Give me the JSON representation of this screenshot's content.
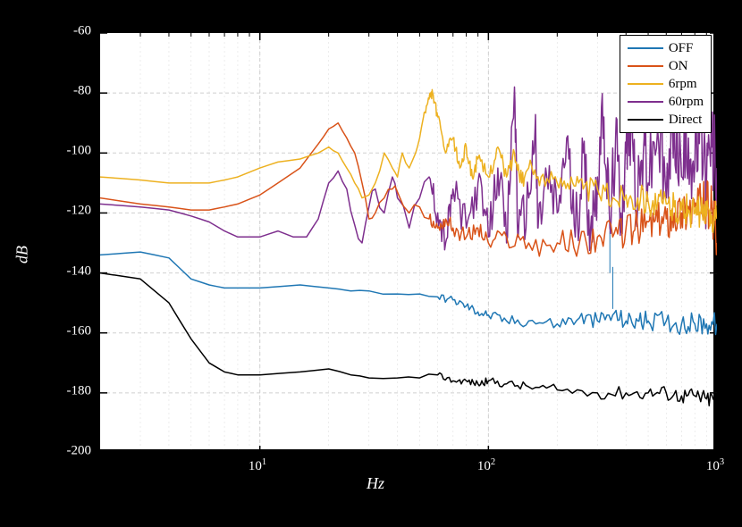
{
  "chart": {
    "type": "line-logx",
    "background_color": "#000000",
    "plot_background": "#ffffff",
    "border_color": "#000000",
    "border_width": 2,
    "xlabel": "Hz",
    "ylabel": "dB",
    "label_fontsize": 18,
    "label_color": "#ffffff",
    "label_fontstyle": "italic",
    "tick_fontsize": 15,
    "tick_color": "#ffffff",
    "xlim": [
      2,
      1000
    ],
    "ylim": [
      -200,
      -60
    ],
    "xscale": "log",
    "yscale": "linear",
    "xticks_major": [
      10,
      100,
      1000
    ],
    "xticks_labels": [
      "10^1",
      "10^2",
      "10^3"
    ],
    "yticks_major": [
      -200,
      -180,
      -160,
      -140,
      -120,
      -100,
      -80,
      -60
    ],
    "yticks_labels": [
      "-200",
      "-180",
      "-160",
      "-140",
      "-120",
      "-100",
      "-80",
      "-60"
    ],
    "grid_major_color": "#cfcfcf",
    "grid_minor_color": "#e5e5e5",
    "grid_linewidth": 1,
    "grid_style": "dashed",
    "legend": {
      "position": "upper-right",
      "border_color": "#000000",
      "background": "#ffffff",
      "items": [
        {
          "label": "OFF",
          "color": "#1f77b4"
        },
        {
          "label": "ON",
          "color": "#d95319"
        },
        {
          "label": "6rpm",
          "color": "#edb120"
        },
        {
          "label": "60rpm",
          "color": "#7e2f8e"
        },
        {
          "label": "Direct",
          "color": "#000000"
        }
      ]
    },
    "series": [
      {
        "name": "Direct",
        "color": "#000000",
        "linewidth": 1.5,
        "points": [
          [
            2,
            -140
          ],
          [
            3,
            -142
          ],
          [
            4,
            -150
          ],
          [
            5,
            -162
          ],
          [
            6,
            -170
          ],
          [
            7,
            -173
          ],
          [
            8,
            -174
          ],
          [
            10,
            -174
          ],
          [
            15,
            -173
          ],
          [
            20,
            -172
          ],
          [
            25,
            -174
          ],
          [
            30,
            -175
          ],
          [
            40,
            -175
          ],
          [
            50,
            -175
          ],
          [
            60,
            -174
          ],
          [
            70,
            -176
          ],
          [
            80,
            -176
          ],
          [
            90,
            -177
          ],
          [
            100,
            -176
          ],
          [
            120,
            -177
          ],
          [
            150,
            -178
          ],
          [
            200,
            -179
          ],
          [
            300,
            -180
          ],
          [
            400,
            -180
          ],
          [
            500,
            -180
          ],
          [
            600,
            -180
          ],
          [
            700,
            -181
          ],
          [
            800,
            -181
          ],
          [
            900,
            -182
          ],
          [
            1000,
            -182
          ]
        ],
        "noise_amplitude_end": 3
      },
      {
        "name": "OFF",
        "color": "#1f77b4",
        "linewidth": 1.5,
        "points": [
          [
            2,
            -134
          ],
          [
            3,
            -133
          ],
          [
            4,
            -135
          ],
          [
            5,
            -142
          ],
          [
            6,
            -144
          ],
          [
            7,
            -145
          ],
          [
            8,
            -145
          ],
          [
            10,
            -145
          ],
          [
            15,
            -144
          ],
          [
            20,
            -145
          ],
          [
            25,
            -146
          ],
          [
            30,
            -146
          ],
          [
            40,
            -147
          ],
          [
            50,
            -147
          ],
          [
            60,
            -148
          ],
          [
            70,
            -149
          ],
          [
            80,
            -151
          ],
          [
            90,
            -153
          ],
          [
            100,
            -154
          ],
          [
            120,
            -156
          ],
          [
            150,
            -156
          ],
          [
            200,
            -157
          ],
          [
            250,
            -155
          ],
          [
            300,
            -156
          ],
          [
            350,
            -154
          ],
          [
            400,
            -156
          ],
          [
            450,
            -156
          ],
          [
            500,
            -156
          ],
          [
            600,
            -156
          ],
          [
            700,
            -157
          ],
          [
            800,
            -157
          ],
          [
            900,
            -157
          ],
          [
            1000,
            -157
          ]
        ],
        "noise_amplitude_end": 4,
        "spikes": [
          [
            340,
            -140
          ],
          [
            350,
            -152
          ]
        ]
      },
      {
        "name": "60rpm",
        "color": "#7e2f8e",
        "linewidth": 1.5,
        "points": [
          [
            2,
            -117
          ],
          [
            3,
            -118
          ],
          [
            4,
            -119
          ],
          [
            5,
            -121
          ],
          [
            6,
            -123
          ],
          [
            7,
            -126
          ],
          [
            8,
            -128
          ],
          [
            10,
            -128
          ],
          [
            12,
            -126
          ],
          [
            14,
            -128
          ],
          [
            16,
            -128
          ],
          [
            18,
            -122
          ],
          [
            20,
            -110
          ],
          [
            22,
            -106
          ],
          [
            24,
            -112
          ],
          [
            26,
            -124
          ],
          [
            28,
            -130
          ],
          [
            30,
            -118
          ],
          [
            32,
            -112
          ],
          [
            35,
            -120
          ],
          [
            38,
            -108
          ],
          [
            40,
            -115
          ],
          [
            45,
            -125
          ],
          [
            50,
            -115
          ],
          [
            55,
            -108
          ],
          [
            60,
            -120
          ],
          [
            65,
            -130
          ],
          [
            70,
            -112
          ],
          [
            80,
            -125
          ],
          [
            90,
            -110
          ],
          [
            100,
            -128
          ],
          [
            110,
            -105
          ],
          [
            120,
            -130
          ],
          [
            130,
            -78
          ],
          [
            135,
            -128
          ],
          [
            150,
            -115
          ],
          [
            160,
            -92
          ],
          [
            165,
            -125
          ],
          [
            180,
            -108
          ],
          [
            200,
            -120
          ],
          [
            220,
            -95
          ],
          [
            240,
            -128
          ],
          [
            260,
            -100
          ],
          [
            280,
            -125
          ],
          [
            300,
            -108
          ],
          [
            320,
            -88
          ],
          [
            340,
            -125
          ],
          [
            360,
            -95
          ],
          [
            380,
            -120
          ],
          [
            400,
            -100
          ],
          [
            420,
            -90
          ],
          [
            450,
            -118
          ],
          [
            480,
            -95
          ],
          [
            500,
            -110
          ],
          [
            550,
            -92
          ],
          [
            600,
            -115
          ],
          [
            650,
            -88
          ],
          [
            700,
            -108
          ],
          [
            750,
            -95
          ],
          [
            800,
            -105
          ],
          [
            850,
            -92
          ],
          [
            900,
            -110
          ],
          [
            950,
            -98
          ],
          [
            1000,
            -105
          ]
        ],
        "noise_amplitude_end": 18
      },
      {
        "name": "ON",
        "color": "#d95319",
        "linewidth": 1.5,
        "points": [
          [
            2,
            -115
          ],
          [
            3,
            -117
          ],
          [
            4,
            -118
          ],
          [
            5,
            -119
          ],
          [
            6,
            -119
          ],
          [
            7,
            -118
          ],
          [
            8,
            -117
          ],
          [
            10,
            -114
          ],
          [
            12,
            -110
          ],
          [
            15,
            -105
          ],
          [
            18,
            -97
          ],
          [
            20,
            -92
          ],
          [
            22,
            -90
          ],
          [
            24,
            -95
          ],
          [
            26,
            -100
          ],
          [
            28,
            -110
          ],
          [
            30,
            -122
          ],
          [
            32,
            -120
          ],
          [
            35,
            -115
          ],
          [
            38,
            -112
          ],
          [
            40,
            -113
          ],
          [
            45,
            -120
          ],
          [
            50,
            -118
          ],
          [
            55,
            -122
          ],
          [
            60,
            -125
          ],
          [
            65,
            -122
          ],
          [
            70,
            -125
          ],
          [
            80,
            -128
          ],
          [
            90,
            -125
          ],
          [
            100,
            -130
          ],
          [
            120,
            -128
          ],
          [
            150,
            -130
          ],
          [
            200,
            -130
          ],
          [
            250,
            -130
          ],
          [
            300,
            -128
          ],
          [
            350,
            -128
          ],
          [
            400,
            -125
          ],
          [
            450,
            -125
          ],
          [
            500,
            -123
          ],
          [
            550,
            -123
          ],
          [
            600,
            -122
          ],
          [
            650,
            -120
          ],
          [
            700,
            -120
          ],
          [
            750,
            -118
          ],
          [
            800,
            -118
          ],
          [
            850,
            -117
          ],
          [
            900,
            -117
          ],
          [
            950,
            -118
          ],
          [
            1000,
            -130
          ]
        ],
        "noise_amplitude_end": 8
      },
      {
        "name": "6rpm",
        "color": "#edb120",
        "linewidth": 1.5,
        "points": [
          [
            2,
            -108
          ],
          [
            3,
            -109
          ],
          [
            4,
            -110
          ],
          [
            5,
            -110
          ],
          [
            6,
            -110
          ],
          [
            7,
            -109
          ],
          [
            8,
            -108
          ],
          [
            10,
            -105
          ],
          [
            12,
            -103
          ],
          [
            15,
            -102
          ],
          [
            18,
            -100
          ],
          [
            20,
            -98
          ],
          [
            22,
            -100
          ],
          [
            24,
            -105
          ],
          [
            26,
            -110
          ],
          [
            28,
            -115
          ],
          [
            30,
            -114
          ],
          [
            32,
            -110
          ],
          [
            35,
            -100
          ],
          [
            38,
            -105
          ],
          [
            40,
            -108
          ],
          [
            42,
            -100
          ],
          [
            45,
            -105
          ],
          [
            48,
            -100
          ],
          [
            50,
            -95
          ],
          [
            52,
            -88
          ],
          [
            55,
            -82
          ],
          [
            57,
            -80
          ],
          [
            60,
            -88
          ],
          [
            65,
            -100
          ],
          [
            70,
            -95
          ],
          [
            75,
            -105
          ],
          [
            80,
            -98
          ],
          [
            85,
            -108
          ],
          [
            90,
            -102
          ],
          [
            100,
            -108
          ],
          [
            110,
            -98
          ],
          [
            120,
            -108
          ],
          [
            130,
            -100
          ],
          [
            140,
            -110
          ],
          [
            150,
            -105
          ],
          [
            170,
            -108
          ],
          [
            200,
            -110
          ],
          [
            230,
            -108
          ],
          [
            260,
            -112
          ],
          [
            300,
            -112
          ],
          [
            350,
            -115
          ],
          [
            400,
            -114
          ],
          [
            450,
            -115
          ],
          [
            500,
            -116
          ],
          [
            550,
            -117
          ],
          [
            600,
            -117
          ],
          [
            650,
            -118
          ],
          [
            700,
            -119
          ],
          [
            750,
            -119
          ],
          [
            800,
            -120
          ],
          [
            850,
            -120
          ],
          [
            900,
            -121
          ],
          [
            950,
            -121
          ],
          [
            1000,
            -122
          ]
        ],
        "noise_amplitude_end": 6
      }
    ]
  }
}
